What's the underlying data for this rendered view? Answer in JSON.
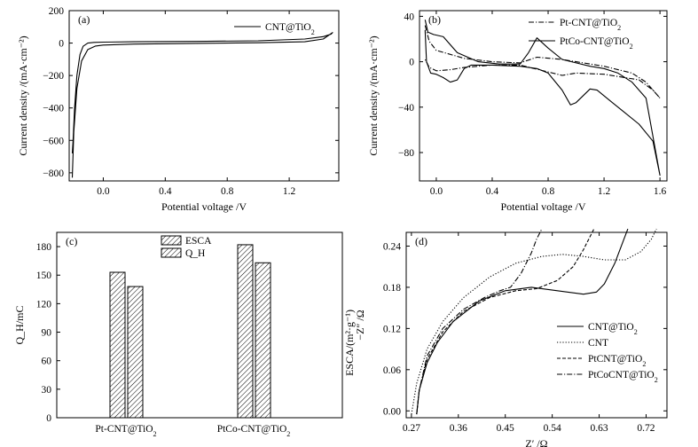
{
  "chart_data": [
    {
      "panel": "(a)",
      "type": "line",
      "xlabel": "Potential voltage /V",
      "ylabel": "Current density /(mA·cm⁻²)",
      "xlim": [
        -0.22,
        1.52
      ],
      "ylim": [
        -850,
        200
      ],
      "xticks": [
        0.0,
        0.4,
        0.8,
        1.2
      ],
      "xtick_labels": [
        "0.0",
        "0.4",
        "0.8",
        "1.2"
      ],
      "yticks": [
        200,
        0,
        -200,
        -400,
        -600,
        -800
      ],
      "ytick_labels": [
        "200",
        "0",
        "−200",
        "−400",
        "−600",
        "−800"
      ],
      "legend_loc": "top-right",
      "series": [
        {
          "name": "CNT@TiO2",
          "style": "solid",
          "x": [
            -0.2,
            -0.19,
            -0.17,
            -0.14,
            -0.1,
            -0.05,
            0.0,
            0.2,
            0.6,
            1.0,
            1.3,
            1.42,
            1.48,
            1.47,
            1.42,
            1.3,
            1.0,
            0.6,
            0.2,
            0.0,
            -0.06,
            -0.1,
            -0.13,
            -0.15,
            -0.17,
            -0.185,
            -0.195,
            -0.2
          ],
          "y": [
            -830,
            -550,
            -280,
            -110,
            -40,
            -18,
            -12,
            -6,
            -2,
            2,
            8,
            25,
            65,
            55,
            40,
            25,
            14,
            10,
            8,
            6,
            4,
            0,
            -20,
            -70,
            -200,
            -400,
            -600,
            -680
          ]
        }
      ]
    },
    {
      "panel": "(b)",
      "type": "line",
      "xlabel": "Potential voltage /V",
      "ylabel": "Current density /(mA·cm⁻²)",
      "xlim": [
        -0.12,
        1.65
      ],
      "ylim": [
        -105,
        45
      ],
      "xticks": [
        0.0,
        0.4,
        0.8,
        1.2,
        1.6
      ],
      "xtick_labels": [
        "0.0",
        "0.4",
        "0.8",
        "1.2",
        "1.6"
      ],
      "yticks": [
        40,
        0,
        -40,
        -80
      ],
      "ytick_labels": [
        "40",
        "0",
        "−40",
        "−80"
      ],
      "legend_loc": "top-right",
      "series": [
        {
          "name": "Pt-CNT@TiO2",
          "style": "dashdot",
          "x": [
            -0.08,
            -0.05,
            0.0,
            0.2,
            0.4,
            0.6,
            0.72,
            0.9,
            1.0,
            1.2,
            1.4,
            1.5,
            1.6,
            1.55,
            1.45,
            1.2,
            1.0,
            0.9,
            0.7,
            0.6,
            0.4,
            0.2,
            0.1,
            0.0,
            -0.05,
            -0.08
          ],
          "y": [
            32,
            18,
            10,
            3,
            0,
            -1,
            4,
            2,
            0,
            -4,
            -10,
            -18,
            -32,
            -25,
            -16,
            -11,
            -10,
            -12,
            -6,
            -3,
            -3,
            -5,
            -7,
            -8,
            -5,
            2
          ]
        },
        {
          "name": "PtCo-CNT@TiO2",
          "style": "solid",
          "x": [
            -0.08,
            -0.06,
            -0.02,
            0.05,
            0.15,
            0.3,
            0.45,
            0.6,
            0.66,
            0.72,
            0.8,
            0.9,
            1.0,
            1.1,
            1.2,
            1.3,
            1.4,
            1.5,
            1.6,
            1.55,
            1.45,
            1.35,
            1.25,
            1.15,
            1.1,
            1.0,
            0.96,
            0.9,
            0.8,
            0.72,
            0.6,
            0.4,
            0.25,
            0.2,
            0.15,
            0.1,
            0.05,
            0.0,
            -0.04,
            -0.07,
            -0.08
          ],
          "y": [
            37,
            26,
            24,
            22,
            8,
            0,
            -2,
            -2,
            8,
            21,
            12,
            2,
            -1,
            -4,
            -6,
            -10,
            -18,
            -32,
            -100,
            -70,
            -55,
            -45,
            -35,
            -25,
            -24,
            -36,
            -38,
            -25,
            -10,
            -6,
            -4,
            -3,
            -3,
            -6,
            -16,
            -18,
            -14,
            -11,
            -10,
            0,
            28
          ]
        }
      ]
    },
    {
      "panel": "(c)",
      "type": "bar",
      "ylabel": "Q_H/mC",
      "ylabel_right": "ESCA/(m²·g⁻¹)",
      "ylim": [
        0,
        195
      ],
      "yticks": [
        0,
        30,
        60,
        90,
        120,
        150,
        180
      ],
      "ytick_labels": [
        "0",
        "30",
        "60",
        "90",
        "120",
        "150",
        "180"
      ],
      "categories": [
        "Pt-CNT@TiO2",
        "PtCo-CNT@TiO2"
      ],
      "legend_loc": "top-center",
      "series": [
        {
          "name": "ESCA",
          "values": [
            153,
            182
          ]
        },
        {
          "name": "Q_H",
          "values": [
            138,
            163
          ]
        }
      ]
    },
    {
      "panel": "(d)",
      "type": "line",
      "xlabel": "Z′ /Ω",
      "ylabel": "−Z″ /Ω",
      "xlim": [
        0.26,
        0.76
      ],
      "ylim": [
        -0.01,
        0.26
      ],
      "xticks": [
        0.27,
        0.36,
        0.45,
        0.54,
        0.63,
        0.72
      ],
      "xtick_labels": [
        "0.27",
        "0.36",
        "0.45",
        "0.54",
        "0.63",
        "0.72"
      ],
      "yticks": [
        0.0,
        0.06,
        0.12,
        0.18,
        0.24
      ],
      "ytick_labels": [
        "0.00",
        "0.06",
        "0.12",
        "0.18",
        "0.24"
      ],
      "legend_loc": "bottom-right",
      "series": [
        {
          "name": "CNT@TiO2",
          "style": "solid",
          "x": [
            0.28,
            0.285,
            0.3,
            0.32,
            0.35,
            0.4,
            0.45,
            0.5,
            0.55,
            0.6,
            0.625,
            0.64,
            0.66,
            0.675,
            0.685
          ],
          "y": [
            -0.005,
            0.03,
            0.07,
            0.1,
            0.13,
            0.16,
            0.175,
            0.18,
            0.175,
            0.17,
            0.173,
            0.185,
            0.215,
            0.245,
            0.265
          ]
        },
        {
          "name": "CNT",
          "style": "dotted",
          "x": [
            0.27,
            0.28,
            0.3,
            0.33,
            0.37,
            0.42,
            0.47,
            0.52,
            0.56,
            0.6,
            0.64,
            0.68,
            0.71,
            0.73,
            0.74
          ],
          "y": [
            -0.005,
            0.04,
            0.09,
            0.13,
            0.165,
            0.195,
            0.215,
            0.225,
            0.228,
            0.225,
            0.22,
            0.22,
            0.232,
            0.25,
            0.265
          ]
        },
        {
          "name": "PtCNT@TiO2",
          "style": "dashed",
          "x": [
            0.28,
            0.285,
            0.3,
            0.33,
            0.37,
            0.42,
            0.47,
            0.51,
            0.55,
            0.58,
            0.6,
            0.61,
            0.62
          ],
          "y": [
            -0.005,
            0.03,
            0.075,
            0.115,
            0.145,
            0.165,
            0.175,
            0.178,
            0.19,
            0.21,
            0.235,
            0.25,
            0.265
          ]
        },
        {
          "name": "PtCoCNT@TiO2",
          "style": "dashdot",
          "x": [
            0.28,
            0.285,
            0.3,
            0.33,
            0.37,
            0.41,
            0.44,
            0.46,
            0.48,
            0.5,
            0.51,
            0.52
          ],
          "y": [
            -0.005,
            0.03,
            0.08,
            0.12,
            0.148,
            0.165,
            0.175,
            0.18,
            0.2,
            0.23,
            0.25,
            0.265
          ]
        }
      ]
    }
  ]
}
